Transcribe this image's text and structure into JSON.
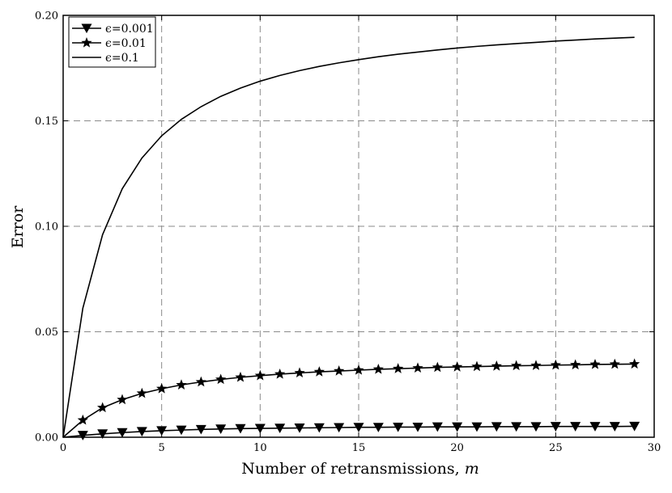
{
  "chart_data": {
    "type": "line",
    "title": "",
    "xlabel": "Number of retransmissions, m",
    "ylabel": "Error",
    "xlim": [
      0,
      30
    ],
    "ylim": [
      0,
      0.2
    ],
    "xticks": [
      0,
      5,
      10,
      15,
      20,
      25,
      30
    ],
    "xtick_labels": [
      "0",
      "5",
      "10",
      "15",
      "20",
      "25",
      "30"
    ],
    "yticks": [
      0,
      0.05,
      0.1,
      0.15,
      0.2
    ],
    "ytick_labels": [
      "0.00",
      "0.05",
      "0.10",
      "0.15",
      "0.20"
    ],
    "grid": true,
    "legend_position": "top-left",
    "series": [
      {
        "name": "ϵ=0.001",
        "marker": "triangle-down",
        "x": [
          0,
          1,
          2,
          3,
          4,
          5,
          6,
          7,
          8,
          9,
          10,
          11,
          12,
          13,
          14,
          15,
          16,
          17,
          18,
          19,
          20,
          21,
          22,
          23,
          24,
          25,
          26,
          27,
          28,
          29
        ],
        "y": [
          0,
          0.0009,
          0.0016,
          0.0022,
          0.0027,
          0.0031,
          0.0034,
          0.0037,
          0.0039,
          0.0041,
          0.0042,
          0.0043,
          0.0044,
          0.0045,
          0.0046,
          0.0047,
          0.0047,
          0.0048,
          0.0048,
          0.0049,
          0.0049,
          0.0049,
          0.005,
          0.005,
          0.005,
          0.0051,
          0.0051,
          0.0051,
          0.0051,
          0.0052
        ]
      },
      {
        "name": "ϵ=0.01",
        "marker": "star",
        "x": [
          0,
          1,
          2,
          3,
          4,
          5,
          6,
          7,
          8,
          9,
          10,
          11,
          12,
          13,
          14,
          15,
          16,
          17,
          18,
          19,
          20,
          21,
          22,
          23,
          24,
          25,
          26,
          27,
          28,
          29
        ],
        "y": [
          0,
          0.0081,
          0.014,
          0.0178,
          0.0208,
          0.023,
          0.0248,
          0.0262,
          0.0274,
          0.0284,
          0.0292,
          0.0299,
          0.0305,
          0.031,
          0.0314,
          0.0318,
          0.0322,
          0.0325,
          0.0328,
          0.0331,
          0.0333,
          0.0335,
          0.0337,
          0.0339,
          0.034,
          0.0342,
          0.0343,
          0.0345,
          0.0346,
          0.0347
        ]
      },
      {
        "name": "ϵ=0.1",
        "marker": "none",
        "x": [
          0,
          1,
          2,
          3,
          4,
          5,
          6,
          7,
          8,
          9,
          10,
          11,
          12,
          13,
          14,
          15,
          16,
          17,
          18,
          19,
          20,
          21,
          22,
          23,
          24,
          25,
          26,
          27,
          28,
          29
        ],
        "y": [
          0,
          0.0612,
          0.096,
          0.1178,
          0.1324,
          0.1429,
          0.1507,
          0.1567,
          0.1616,
          0.1655,
          0.1688,
          0.1715,
          0.1738,
          0.1758,
          0.1775,
          0.179,
          0.1804,
          0.1816,
          0.1826,
          0.1836,
          0.1845,
          0.1853,
          0.186,
          0.1866,
          0.1872,
          0.1878,
          0.1883,
          0.1888,
          0.1892,
          0.1896
        ]
      }
    ]
  }
}
